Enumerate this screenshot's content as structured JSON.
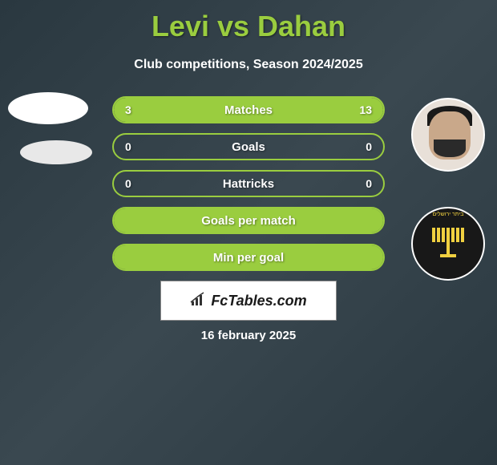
{
  "title": "Levi vs Dahan",
  "subtitle": "Club competitions, Season 2024/2025",
  "stats": [
    {
      "label": "Matches",
      "left_value": "3",
      "right_value": "13",
      "left_fill_pct": 18.75,
      "right_fill_pct": 81.25,
      "full": false
    },
    {
      "label": "Goals",
      "left_value": "0",
      "right_value": "0",
      "left_fill_pct": 0,
      "right_fill_pct": 0,
      "full": false
    },
    {
      "label": "Hattricks",
      "left_value": "0",
      "right_value": "0",
      "left_fill_pct": 0,
      "right_fill_pct": 0,
      "full": false
    },
    {
      "label": "Goals per match",
      "left_value": "",
      "right_value": "",
      "left_fill_pct": 0,
      "right_fill_pct": 0,
      "full": true
    },
    {
      "label": "Min per goal",
      "left_value": "",
      "right_value": "",
      "left_fill_pct": 0,
      "right_fill_pct": 0,
      "full": true
    }
  ],
  "brand": "FcTables.com",
  "date": "16 february 2025",
  "colors": {
    "accent": "#9acd3f",
    "bg_start": "#2a3840",
    "bg_end": "#3a4850",
    "text": "#ffffff",
    "brand_bg": "#ffffff"
  }
}
